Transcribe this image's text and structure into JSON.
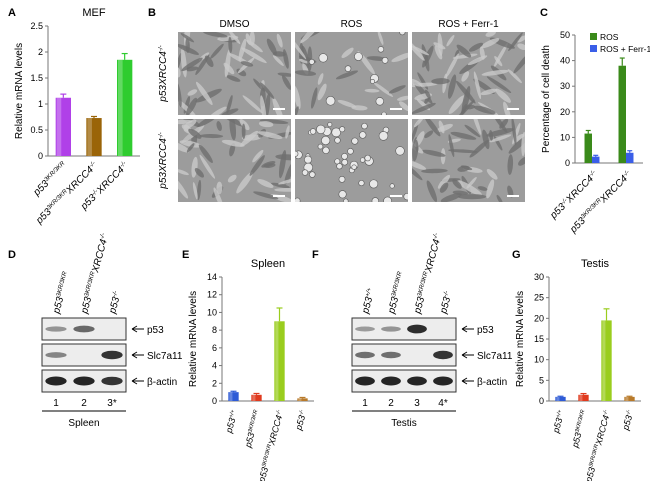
{
  "panel_letters": {
    "a": "A",
    "b": "B",
    "c": "C",
    "d": "D",
    "e": "E",
    "f": "F",
    "g": "G"
  },
  "microscopy": {
    "columns": [
      "DMSO",
      "ROS",
      "ROS + Ferr-1"
    ],
    "rows": [
      {
        "base": "p53",
        "sup1": "-/-",
        "mid": "XRCC4",
        "sup2": "-/-"
      },
      {
        "base": "p53",
        "sup1": "3KR/3KR",
        "mid": "XRCC4",
        "sup2": "-/-"
      }
    ]
  },
  "blot_d": {
    "lanes": [
      {
        "base": "p53",
        "sup": "3KR/3KR",
        "mid": "",
        "sup2": ""
      },
      {
        "base": "p53",
        "sup": "3KR/3KR",
        "mid": "XRCC4",
        "sup2": "-/-"
      },
      {
        "base": "p53",
        "sup": "-/-",
        "mid": "",
        "sup2": ""
      }
    ],
    "bands": [
      "p53",
      "Slc7a11",
      "β-actin"
    ],
    "lane_numbers": [
      "1",
      "2",
      "3*"
    ],
    "tissue": "Spleen"
  },
  "blot_f": {
    "lanes": [
      {
        "base": "p53",
        "sup": "+/+",
        "mid": "",
        "sup2": ""
      },
      {
        "base": "p53",
        "sup": "3KR/3KR",
        "mid": "",
        "sup2": ""
      },
      {
        "base": "p53",
        "sup": "3KR/3KR",
        "mid": "XRCC4",
        "sup2": "-/-"
      },
      {
        "base": "p53",
        "sup": "-/-",
        "mid": "",
        "sup2": ""
      }
    ],
    "bands": [
      "p53",
      "Slc7a11",
      "β-actin"
    ],
    "lane_numbers": [
      "1",
      "2",
      "3",
      "4*"
    ],
    "tissue": "Testis"
  },
  "chart_data": [
    {
      "panel": "A",
      "type": "bar",
      "title": "MEF",
      "ylabel": "Relative mRNA levels",
      "ylim": [
        0,
        2.5
      ],
      "yticks": [
        "0",
        "0.5",
        "1",
        "1.5",
        "2",
        "2.5"
      ],
      "categories": [
        {
          "base": "p53",
          "sup": "3KR/3KR",
          "mid": "",
          "sup2": ""
        },
        {
          "base": "p53",
          "sup": "3KR/3KR",
          "mid": "XRCC4",
          "sup2": "-/-"
        },
        {
          "base": "p53",
          "sup": "-/-",
          "mid": "XRCC4",
          "sup2": "-/-"
        }
      ],
      "values": [
        1.12,
        0.73,
        1.85
      ],
      "errors": [
        0.07,
        0.03,
        0.12
      ],
      "colors": [
        "#b040e8",
        "#9a6408",
        "#2fcc2f"
      ]
    },
    {
      "panel": "C",
      "type": "bar",
      "ylabel": "Percentage of cell death",
      "ylim": [
        0,
        50
      ],
      "yticks": [
        "0",
        "10",
        "20",
        "30",
        "40",
        "50"
      ],
      "categories": [
        {
          "base": "p53",
          "sup": "-/-",
          "mid": "XRCC4",
          "sup2": "-/-"
        },
        {
          "base": "p53",
          "sup": "3KR/3KR",
          "mid": "XRCC4",
          "sup2": "-/-"
        }
      ],
      "series": [
        {
          "name": "ROS",
          "values": [
            11.5,
            38
          ],
          "errors": [
            1.2,
            3
          ],
          "color": "#3a8a1a"
        },
        {
          "name": "ROS + Ferr-1",
          "values": [
            2.5,
            4
          ],
          "errors": [
            0.5,
            0.8
          ],
          "color": "#3a5ee8"
        }
      ],
      "legend_position": "top-right"
    },
    {
      "panel": "E",
      "type": "bar",
      "title": "Spleen",
      "ylabel": "Relative mRNA levels",
      "ylim": [
        0,
        14
      ],
      "yticks": [
        "0",
        "2",
        "4",
        "6",
        "8",
        "10",
        "12",
        "14"
      ],
      "categories": [
        {
          "base": "p53",
          "sup": "+/+",
          "mid": "",
          "sup2": ""
        },
        {
          "base": "p53",
          "sup": "3KR/3KR",
          "mid": "",
          "sup2": ""
        },
        {
          "base": "p53",
          "sup": "3KR/3KR",
          "mid": "XRCC4",
          "sup2": "-/-"
        },
        {
          "base": "p53",
          "sup": "-/-",
          "mid": "",
          "sup2": ""
        }
      ],
      "values": [
        1.0,
        0.7,
        9.0,
        0.3
      ],
      "errors": [
        0.1,
        0.15,
        1.5,
        0.1
      ],
      "colors": [
        "#2e5bd6",
        "#e03a1e",
        "#9acd1e",
        "#b87a2a"
      ]
    },
    {
      "panel": "G",
      "type": "bar",
      "title": "Testis",
      "ylabel": "Relative mRNA levels",
      "ylim": [
        0,
        30
      ],
      "yticks": [
        "0",
        "5",
        "10",
        "15",
        "20",
        "25",
        "30"
      ],
      "categories": [
        {
          "base": "p53",
          "sup": "+/+",
          "mid": "",
          "sup2": ""
        },
        {
          "base": "p53",
          "sup": "3KR/3KR",
          "mid": "",
          "sup2": ""
        },
        {
          "base": "p53",
          "sup": "3KR/3KR",
          "mid": "XRCC4",
          "sup2": "-/-"
        },
        {
          "base": "p53",
          "sup": "-/-",
          "mid": "",
          "sup2": ""
        }
      ],
      "values": [
        1.0,
        1.5,
        19.5,
        1.0
      ],
      "errors": [
        0.15,
        0.3,
        2.8,
        0.15
      ],
      "colors": [
        "#2e5bd6",
        "#e03a1e",
        "#9acd1e",
        "#b87a2a"
      ]
    }
  ]
}
